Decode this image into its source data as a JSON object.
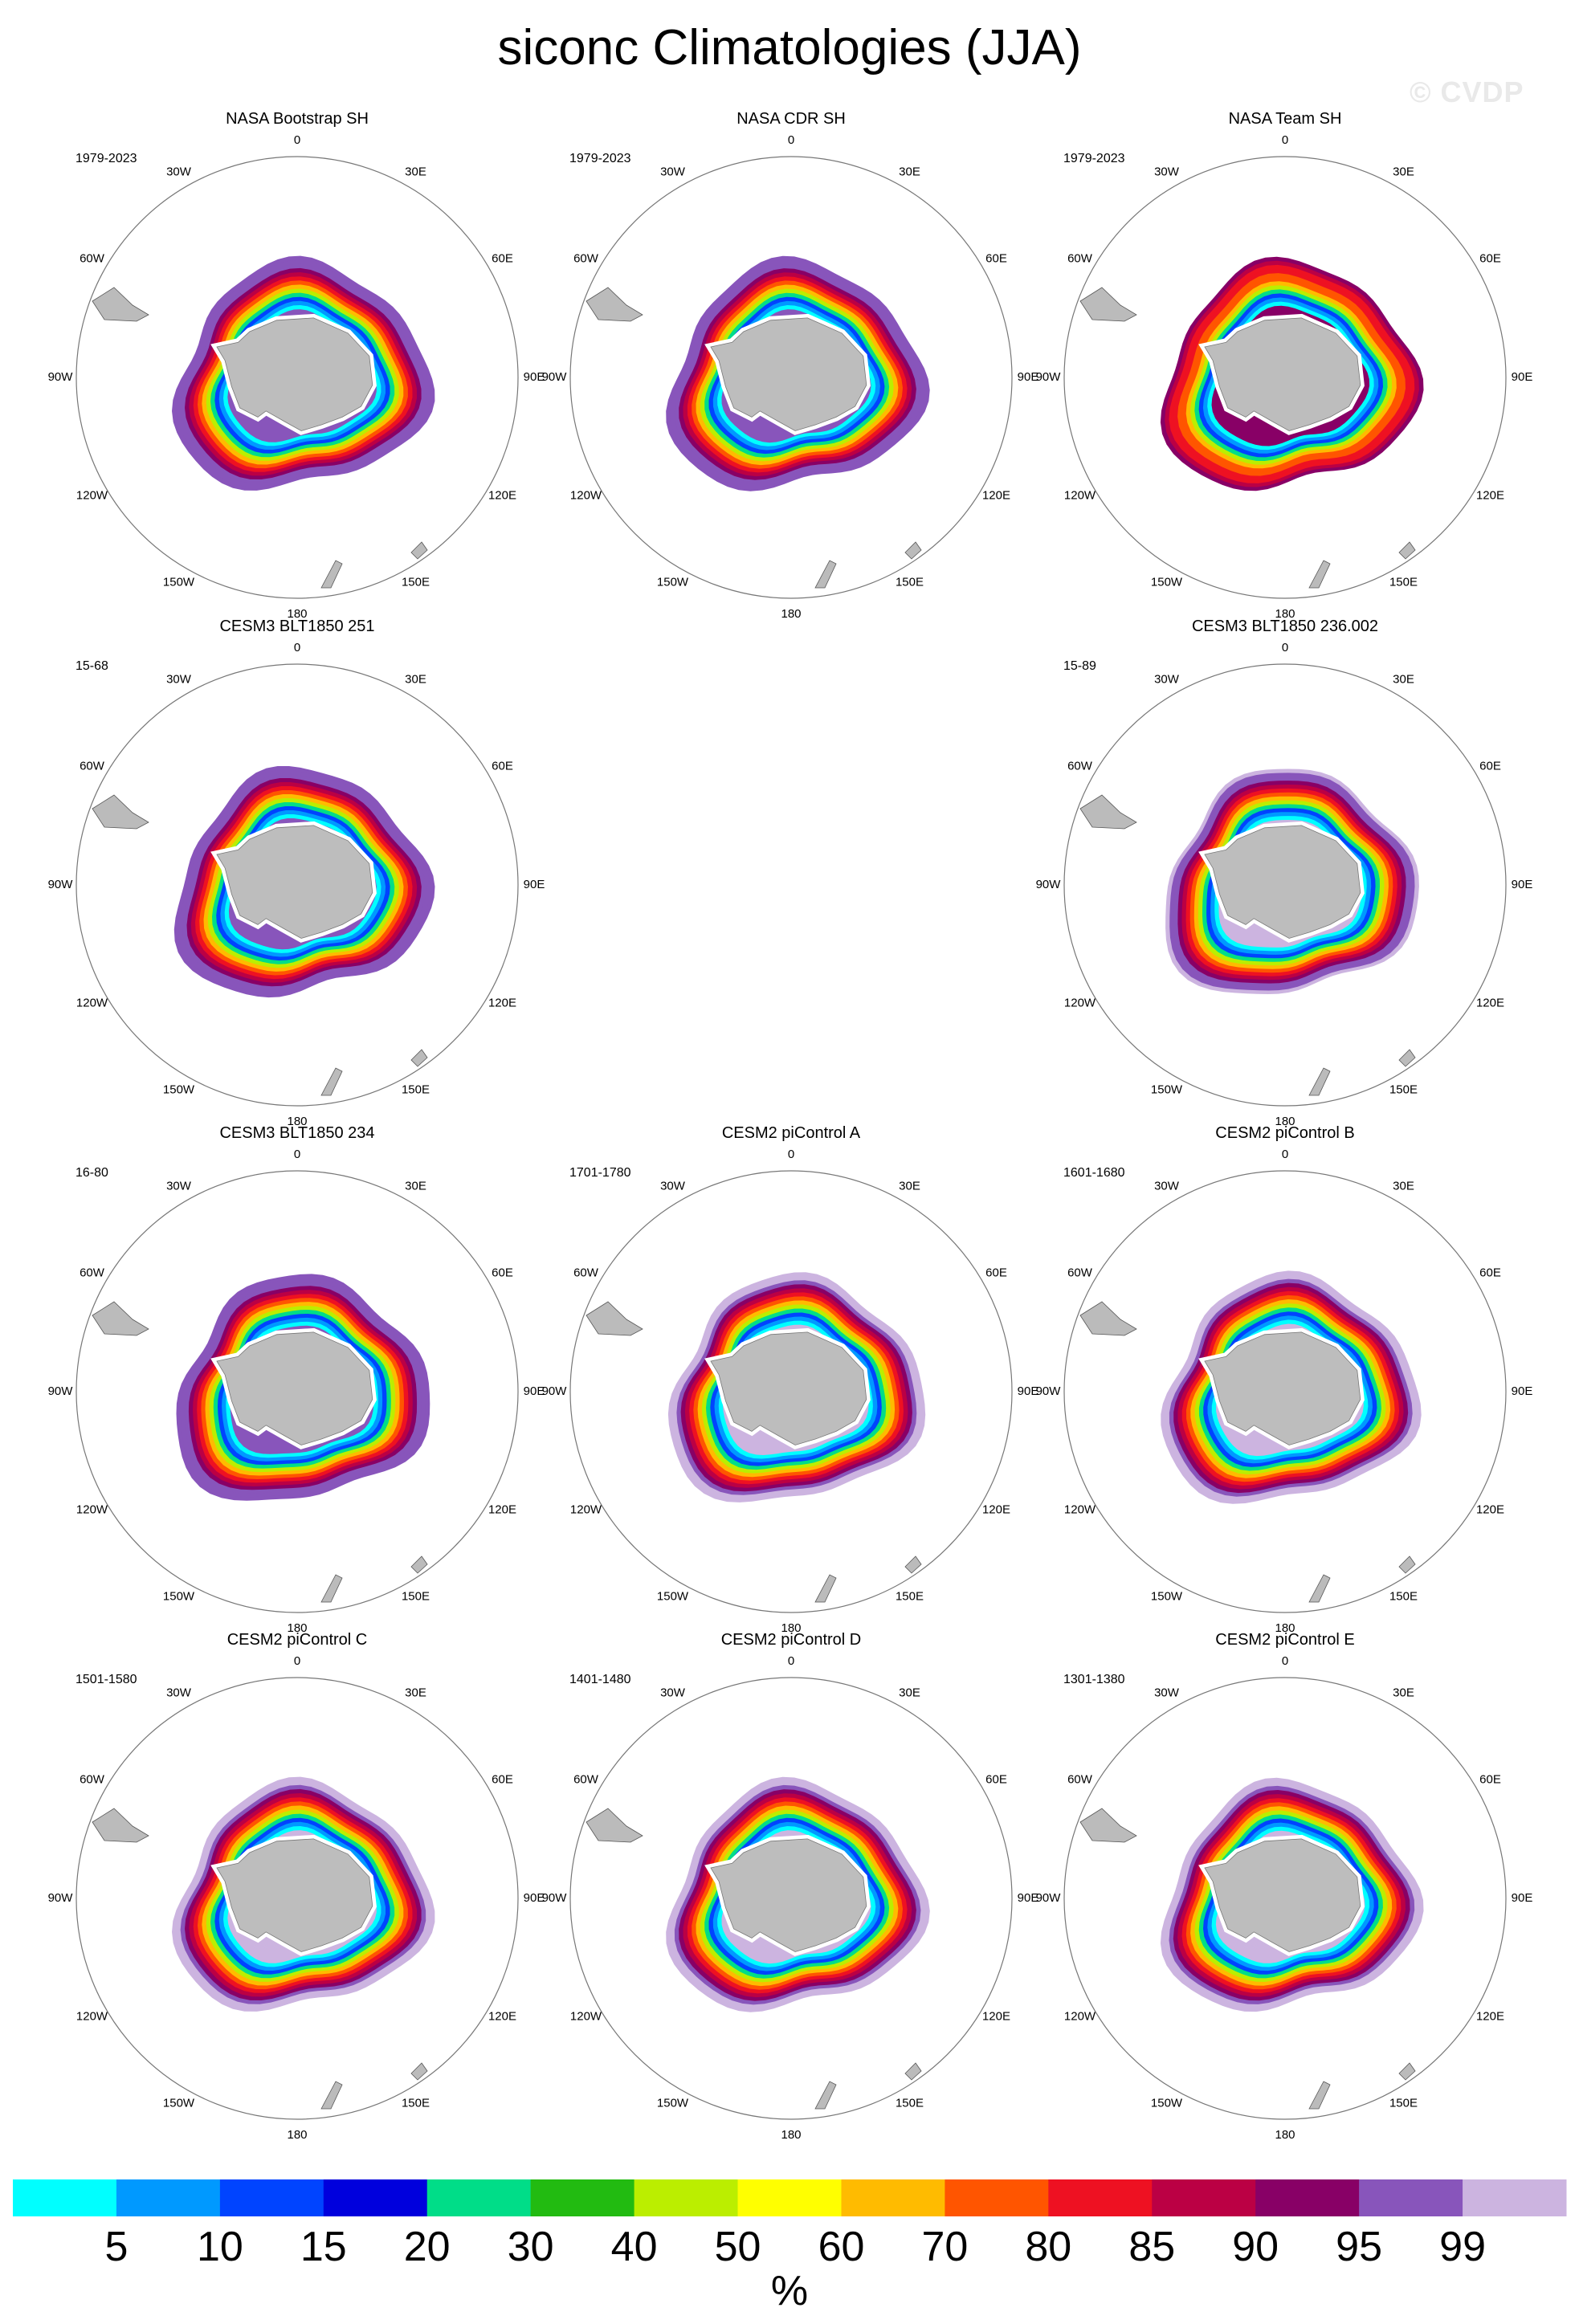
{
  "title": "siconc Climatologies (JJA)",
  "watermark": "© CVDP",
  "chart_data": {
    "type": "map",
    "projection": "south-polar-stereographic",
    "variable": "siconc",
    "season": "JJA",
    "units": "%",
    "longitude_labels": [
      "0",
      "30E",
      "60E",
      "90E",
      "120E",
      "150E",
      "180",
      "150W",
      "120W",
      "90W",
      "60W",
      "30W"
    ],
    "panels": [
      {
        "title": "NASA Bootstrap SH",
        "period": "1979-2023",
        "style": "obs-purple"
      },
      {
        "title": "NASA CDR SH",
        "period": "1979-2023",
        "style": "obs-purple"
      },
      {
        "title": "NASA Team SH",
        "period": "1979-2023",
        "style": "obs-red"
      },
      {
        "title": "CESM3 BLT1850 251",
        "period": "15-68",
        "style": "model-a"
      },
      null,
      {
        "title": "CESM3 BLT1850 236.002",
        "period": "15-89",
        "style": "model-b"
      },
      {
        "title": "CESM3 BLT1850 234",
        "period": "16-80",
        "style": "model-a"
      },
      {
        "title": "CESM2 piControl A",
        "period": "1701-1780",
        "style": "model-c"
      },
      {
        "title": "CESM2 piControl B",
        "period": "1601-1680",
        "style": "model-c"
      },
      {
        "title": "CESM2 piControl C",
        "period": "1501-1580",
        "style": "model-c"
      },
      {
        "title": "CESM2 piControl D",
        "period": "1401-1480",
        "style": "model-c"
      },
      {
        "title": "CESM2 piControl E",
        "period": "1301-1380",
        "style": "model-c"
      }
    ],
    "colorbar": {
      "levels": [
        "5",
        "10",
        "15",
        "20",
        "30",
        "40",
        "50",
        "60",
        "70",
        "80",
        "85",
        "90",
        "95",
        "99"
      ],
      "colors": [
        "#00ffff",
        "#0099ff",
        "#0044ff",
        "#0000dd",
        "#00dd88",
        "#22bb11",
        "#bbee00",
        "#ffff00",
        "#ffbb00",
        "#ff5500",
        "#ee1122",
        "#bb0044",
        "#880066",
        "#8855bb",
        "#ccb4e0"
      ]
    }
  }
}
